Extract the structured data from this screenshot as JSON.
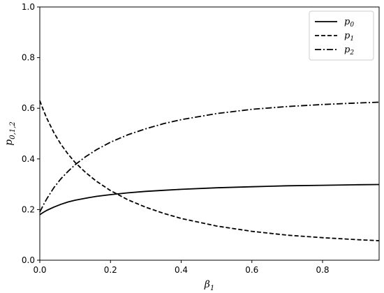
{
  "chart_data": {
    "type": "line",
    "title": "",
    "xlabel": "β1",
    "ylabel": "p0,1,2",
    "xlim": [
      0,
      0.96
    ],
    "ylim": [
      0,
      1.0
    ],
    "xticks": [
      0.0,
      0.2,
      0.4,
      0.6,
      0.8
    ],
    "yticks": [
      0.0,
      0.2,
      0.4,
      0.6,
      0.8,
      1.0
    ],
    "tick_labels_x": [
      "0.0",
      "0.2",
      "0.4",
      "0.6",
      "0.8"
    ],
    "tick_labels_y": [
      "0.0",
      "0.2",
      "0.4",
      "0.6",
      "0.8",
      "1.0"
    ],
    "grid": false,
    "legend_position": "top-right",
    "x": [
      0,
      0.01,
      0.02,
      0.04,
      0.06,
      0.08,
      0.1,
      0.13,
      0.16,
      0.2,
      0.25,
      0.3,
      0.35,
      0.4,
      0.5,
      0.6,
      0.7,
      0.8,
      0.9,
      0.96
    ],
    "series": [
      {
        "name": "p0",
        "style": "solid",
        "values": [
          0.18,
          0.189,
          0.197,
          0.21,
          0.221,
          0.23,
          0.237,
          0.245,
          0.252,
          0.259,
          0.266,
          0.272,
          0.276,
          0.28,
          0.286,
          0.29,
          0.294,
          0.296,
          0.298,
          0.299
        ]
      },
      {
        "name": "p1",
        "style": "dashed",
        "values": [
          0.63,
          0.593,
          0.56,
          0.503,
          0.457,
          0.419,
          0.386,
          0.346,
          0.312,
          0.275,
          0.238,
          0.209,
          0.185,
          0.165,
          0.135,
          0.114,
          0.099,
          0.089,
          0.081,
          0.077
        ]
      },
      {
        "name": "p2",
        "style": "dashdot",
        "values": [
          0.19,
          0.218,
          0.243,
          0.287,
          0.322,
          0.351,
          0.377,
          0.409,
          0.436,
          0.466,
          0.496,
          0.519,
          0.539,
          0.555,
          0.579,
          0.596,
          0.607,
          0.615,
          0.621,
          0.624
        ]
      }
    ]
  }
}
